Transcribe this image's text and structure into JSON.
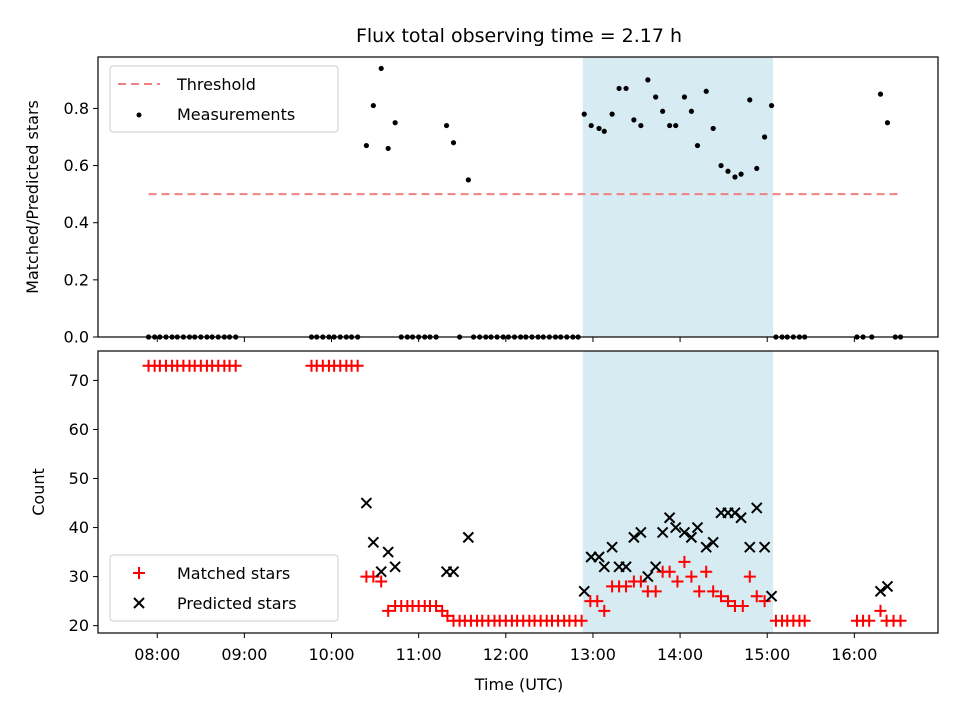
{
  "chart_data": {
    "type": "scatter",
    "title": "Flux total observing time = 2.17 h",
    "xlabel": "Time (UTC)",
    "x_tick_labels": [
      "08:00",
      "09:00",
      "10:00",
      "11:00",
      "12:00",
      "13:00",
      "14:00",
      "15:00",
      "16:00"
    ],
    "x_tick_hours": [
      8,
      9,
      10,
      11,
      12,
      13,
      14,
      15,
      16
    ],
    "xlim_hours": [
      7.32,
      16.96
    ],
    "shaded_interval": {
      "start": "12:53",
      "end": "15:04",
      "color": "#add8e6"
    },
    "colors": {
      "threshold": "#f08080",
      "measurements": "#000000",
      "matched": "#ff0000",
      "predicted": "#000000",
      "shade": "#add8e6"
    },
    "panels": [
      {
        "ylabel": "Matched/Predicted stars",
        "ylim": [
          0,
          0.98
        ],
        "y_ticks": [
          0.0,
          0.2,
          0.4,
          0.6,
          0.8
        ],
        "y_tick_labels": [
          "0.0",
          "0.2",
          "0.4",
          "0.6",
          "0.8"
        ],
        "legend": {
          "location": "upper left",
          "entries": [
            "Threshold",
            "Measurements"
          ]
        },
        "threshold": {
          "name": "Threshold",
          "y": 0.5,
          "x_range_hours": [
            7.9,
            16.5
          ],
          "style": "dashed"
        },
        "measurements": {
          "name": "Measurements",
          "points": [
            [
              7.9,
              0
            ],
            [
              7.97,
              0
            ],
            [
              8.03,
              0
            ],
            [
              8.1,
              0
            ],
            [
              8.17,
              0
            ],
            [
              8.23,
              0
            ],
            [
              8.3,
              0
            ],
            [
              8.37,
              0
            ],
            [
              8.43,
              0
            ],
            [
              8.5,
              0
            ],
            [
              8.57,
              0
            ],
            [
              8.63,
              0
            ],
            [
              8.7,
              0
            ],
            [
              8.77,
              0
            ],
            [
              8.83,
              0
            ],
            [
              8.9,
              0
            ],
            [
              9.77,
              0
            ],
            [
              9.83,
              0
            ],
            [
              9.9,
              0
            ],
            [
              9.97,
              0
            ],
            [
              10.03,
              0
            ],
            [
              10.1,
              0
            ],
            [
              10.17,
              0
            ],
            [
              10.23,
              0
            ],
            [
              10.3,
              0
            ],
            [
              10.4,
              0.67
            ],
            [
              10.48,
              0.81
            ],
            [
              10.57,
              0.94
            ],
            [
              10.65,
              0.66
            ],
            [
              10.73,
              0.75
            ],
            [
              10.8,
              0
            ],
            [
              10.87,
              0
            ],
            [
              10.93,
              0
            ],
            [
              11.0,
              0
            ],
            [
              11.07,
              0
            ],
            [
              11.13,
              0
            ],
            [
              11.2,
              0
            ],
            [
              11.32,
              0.74
            ],
            [
              11.4,
              0.68
            ],
            [
              11.57,
              0.55
            ],
            [
              11.47,
              0
            ],
            [
              11.63,
              0
            ],
            [
              11.7,
              0
            ],
            [
              11.77,
              0
            ],
            [
              11.83,
              0
            ],
            [
              11.9,
              0
            ],
            [
              11.97,
              0
            ],
            [
              12.03,
              0
            ],
            [
              12.1,
              0
            ],
            [
              12.17,
              0
            ],
            [
              12.23,
              0
            ],
            [
              12.3,
              0
            ],
            [
              12.37,
              0
            ],
            [
              12.43,
              0
            ],
            [
              12.5,
              0
            ],
            [
              12.57,
              0
            ],
            [
              12.63,
              0
            ],
            [
              12.7,
              0
            ],
            [
              12.77,
              0
            ],
            [
              12.83,
              0
            ],
            [
              12.9,
              0.78
            ],
            [
              12.98,
              0.74
            ],
            [
              13.07,
              0.73
            ],
            [
              13.13,
              0.72
            ],
            [
              13.22,
              0.78
            ],
            [
              13.3,
              0.87
            ],
            [
              13.38,
              0.87
            ],
            [
              13.47,
              0.76
            ],
            [
              13.55,
              0.74
            ],
            [
              13.63,
              0.9
            ],
            [
              13.72,
              0.84
            ],
            [
              13.8,
              0.79
            ],
            [
              13.88,
              0.74
            ],
            [
              13.95,
              0.74
            ],
            [
              14.05,
              0.84
            ],
            [
              14.13,
              0.79
            ],
            [
              14.2,
              0.67
            ],
            [
              14.3,
              0.86
            ],
            [
              14.38,
              0.73
            ],
            [
              14.47,
              0.6
            ],
            [
              14.55,
              0.58
            ],
            [
              14.63,
              0.56
            ],
            [
              14.7,
              0.57
            ],
            [
              14.8,
              0.83
            ],
            [
              14.88,
              0.59
            ],
            [
              14.97,
              0.7
            ],
            [
              15.05,
              0.81
            ],
            [
              15.1,
              0
            ],
            [
              15.17,
              0
            ],
            [
              15.23,
              0
            ],
            [
              15.3,
              0
            ],
            [
              15.37,
              0
            ],
            [
              15.43,
              0
            ],
            [
              16.03,
              0
            ],
            [
              16.1,
              0
            ],
            [
              16.2,
              0
            ],
            [
              16.3,
              0.85
            ],
            [
              16.38,
              0.75
            ],
            [
              16.47,
              0
            ],
            [
              16.53,
              0
            ]
          ]
        }
      },
      {
        "ylabel": "Count",
        "ylim": [
          18.5,
          76
        ],
        "y_ticks": [
          20,
          30,
          40,
          50,
          60,
          70
        ],
        "y_tick_labels": [
          "20",
          "30",
          "40",
          "50",
          "60",
          "70"
        ],
        "legend": {
          "location": "lower left",
          "entries": [
            "Matched stars",
            "Predicted stars"
          ]
        },
        "series": [
          {
            "name": "Matched stars",
            "marker": "+",
            "points": [
              [
                7.9,
                73
              ],
              [
                7.97,
                73
              ],
              [
                8.03,
                73
              ],
              [
                8.1,
                73
              ],
              [
                8.17,
                73
              ],
              [
                8.23,
                73
              ],
              [
                8.3,
                73
              ],
              [
                8.37,
                73
              ],
              [
                8.43,
                73
              ],
              [
                8.5,
                73
              ],
              [
                8.57,
                73
              ],
              [
                8.63,
                73
              ],
              [
                8.7,
                73
              ],
              [
                8.77,
                73
              ],
              [
                8.83,
                73
              ],
              [
                8.9,
                73
              ],
              [
                9.77,
                73
              ],
              [
                9.83,
                73
              ],
              [
                9.9,
                73
              ],
              [
                9.97,
                73
              ],
              [
                10.03,
                73
              ],
              [
                10.1,
                73
              ],
              [
                10.17,
                73
              ],
              [
                10.23,
                73
              ],
              [
                10.3,
                73
              ],
              [
                10.4,
                30
              ],
              [
                10.48,
                30
              ],
              [
                10.57,
                29
              ],
              [
                10.65,
                23
              ],
              [
                10.73,
                24
              ],
              [
                10.8,
                24
              ],
              [
                10.87,
                24
              ],
              [
                10.93,
                24
              ],
              [
                11.0,
                24
              ],
              [
                11.07,
                24
              ],
              [
                11.13,
                24
              ],
              [
                11.2,
                24
              ],
              [
                11.27,
                23
              ],
              [
                11.33,
                22
              ],
              [
                11.4,
                21
              ],
              [
                11.47,
                21
              ],
              [
                11.53,
                21
              ],
              [
                11.6,
                21
              ],
              [
                11.67,
                21
              ],
              [
                11.73,
                21
              ],
              [
                11.8,
                21
              ],
              [
                11.87,
                21
              ],
              [
                11.93,
                21
              ],
              [
                12.0,
                21
              ],
              [
                12.07,
                21
              ],
              [
                12.13,
                21
              ],
              [
                12.2,
                21
              ],
              [
                12.27,
                21
              ],
              [
                12.33,
                21
              ],
              [
                12.4,
                21
              ],
              [
                12.47,
                21
              ],
              [
                12.53,
                21
              ],
              [
                12.6,
                21
              ],
              [
                12.67,
                21
              ],
              [
                12.73,
                21
              ],
              [
                12.8,
                21
              ],
              [
                12.87,
                21
              ],
              [
                12.97,
                25
              ],
              [
                13.05,
                25
              ],
              [
                13.13,
                23
              ],
              [
                13.22,
                28
              ],
              [
                13.3,
                28
              ],
              [
                13.38,
                28
              ],
              [
                13.47,
                29
              ],
              [
                13.55,
                29
              ],
              [
                13.63,
                27
              ],
              [
                13.72,
                27
              ],
              [
                13.8,
                31
              ],
              [
                13.88,
                31
              ],
              [
                13.97,
                29
              ],
              [
                14.05,
                33
              ],
              [
                14.13,
                30
              ],
              [
                14.22,
                27
              ],
              [
                14.3,
                31
              ],
              [
                14.38,
                27
              ],
              [
                14.47,
                26
              ],
              [
                14.55,
                25
              ],
              [
                14.63,
                24
              ],
              [
                14.72,
                24
              ],
              [
                14.8,
                30
              ],
              [
                14.88,
                26
              ],
              [
                14.97,
                25
              ],
              [
                15.1,
                21
              ],
              [
                15.17,
                21
              ],
              [
                15.23,
                21
              ],
              [
                15.3,
                21
              ],
              [
                15.37,
                21
              ],
              [
                15.43,
                21
              ],
              [
                16.03,
                21
              ],
              [
                16.1,
                21
              ],
              [
                16.17,
                21
              ],
              [
                16.3,
                23
              ],
              [
                16.37,
                21
              ],
              [
                16.45,
                21
              ],
              [
                16.53,
                21
              ]
            ]
          },
          {
            "name": "Predicted stars",
            "marker": "x",
            "points": [
              [
                10.4,
                45
              ],
              [
                10.48,
                37
              ],
              [
                10.57,
                31
              ],
              [
                10.65,
                35
              ],
              [
                10.73,
                32
              ],
              [
                11.32,
                31
              ],
              [
                11.4,
                31
              ],
              [
                11.57,
                38
              ],
              [
                12.9,
                27
              ],
              [
                12.98,
                34
              ],
              [
                13.07,
                34
              ],
              [
                13.13,
                32
              ],
              [
                13.22,
                36
              ],
              [
                13.3,
                32
              ],
              [
                13.38,
                32
              ],
              [
                13.47,
                38
              ],
              [
                13.55,
                39
              ],
              [
                13.63,
                30
              ],
              [
                13.72,
                32
              ],
              [
                13.8,
                39
              ],
              [
                13.88,
                42
              ],
              [
                13.95,
                40
              ],
              [
                14.05,
                39
              ],
              [
                14.13,
                38
              ],
              [
                14.2,
                40
              ],
              [
                14.3,
                36
              ],
              [
                14.38,
                37
              ],
              [
                14.47,
                43
              ],
              [
                14.55,
                43
              ],
              [
                14.63,
                43
              ],
              [
                14.7,
                42
              ],
              [
                14.8,
                36
              ],
              [
                14.88,
                44
              ],
              [
                14.97,
                36
              ],
              [
                15.05,
                26
              ],
              [
                16.3,
                27
              ],
              [
                16.38,
                28
              ]
            ]
          }
        ]
      }
    ]
  }
}
